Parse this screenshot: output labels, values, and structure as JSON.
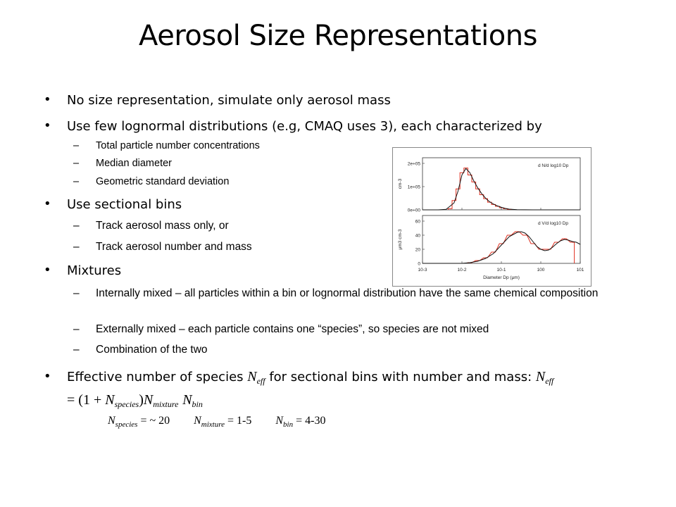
{
  "title": "Aerosol Size Representations",
  "bullets": {
    "b1": "No size representation, simulate only aerosol mass",
    "b2": "Use few lognormal distributions (e.g, CMAQ uses 3), each characterized by",
    "b2_sub1": "Total particle number concentrations",
    "b2_sub2": "Median diameter",
    "b2_sub3": "Geometric standard deviation",
    "b3": "Use sectional bins",
    "b3_sub1": "Track aerosol mass only, or",
    "b3_sub2": "Track aerosol number and mass",
    "b4": "Mixtures",
    "b4_sub1": "Internally mixed – all particles within a bin or lognormal distribution have the same chemical composition",
    "b4_sub2": "Externally mixed – each particle contains one “species”, so species are not mixed",
    "b4_sub3": "Combination of the two",
    "b5_text1": "Effective number of species ",
    "b5_text2": " for sectional bins with number and mass: ",
    "b5_text3": "= (1 + ",
    "N": "N",
    "sub_eff": "eff",
    "sub_species": "species",
    "sub_mixture": "mixture",
    "sub_bin": "bin",
    "close_paren": ")",
    "formula_species_val": " = ~ 20",
    "formula_mixture_val": " = 1-5",
    "formula_bin_val": " = 4-30"
  },
  "chart_data": [
    {
      "type": "line",
      "title": "d N/d log10 Dp",
      "ylabel": "cm-3",
      "yticks": [
        "0e+00",
        "1e+05",
        "2e+05"
      ],
      "ylim": [
        0,
        200000
      ],
      "x_log10": [
        -3,
        -2.6,
        -2.4,
        -2.2,
        -2.1,
        -2.0,
        -1.9,
        -1.8,
        -1.7,
        -1.6,
        -1.5,
        -1.4,
        -1.3,
        -1.2,
        -1.1,
        -1.0,
        -0.9,
        -0.8,
        -0.6,
        -0.2,
        0,
        1
      ],
      "values": [
        0,
        0,
        2000,
        30000,
        80000,
        150000,
        178000,
        160000,
        125000,
        95000,
        70000,
        50000,
        35000,
        25000,
        17000,
        11000,
        6000,
        3000,
        800,
        0,
        0,
        0
      ],
      "bins_log10": [
        -2.3,
        -2.2,
        -2.1,
        -2.0,
        -1.9,
        -1.8,
        -1.7,
        -1.6,
        -1.5,
        -1.4,
        -1.3,
        -1.2,
        -1.1,
        -1.0,
        -0.9,
        -0.8
      ],
      "bin_values": [
        5000,
        40000,
        90000,
        160000,
        180000,
        150000,
        120000,
        90000,
        65000,
        48000,
        33000,
        23000,
        15000,
        9000,
        5000,
        2000
      ]
    },
    {
      "type": "line",
      "title": "d V/d log10 Dp",
      "ylabel": "μm3 cm-3",
      "xlabel": "Diameter Dp (μm)",
      "yticks": [
        "0",
        "20",
        "40",
        "60"
      ],
      "ylim": [
        0,
        60
      ],
      "xticks": [
        "10-3",
        "10-2",
        "10-1",
        "100",
        "101"
      ],
      "x_log10": [
        -3,
        -2,
        -1.8,
        -1.6,
        -1.4,
        -1.2,
        -1.0,
        -0.8,
        -0.6,
        -0.5,
        -0.4,
        -0.3,
        -0.2,
        -0.1,
        0,
        0.1,
        0.2,
        0.3,
        0.4,
        0.5,
        0.6,
        0.7,
        0.8,
        0.9,
        1.0
      ],
      "values": [
        0,
        0,
        1,
        3,
        7,
        14,
        26,
        38,
        44,
        45,
        43,
        38,
        31,
        24,
        20,
        18,
        19,
        23,
        28,
        32,
        34,
        33,
        31,
        30,
        27
      ],
      "bins_log10": [
        -1.8,
        -1.6,
        -1.4,
        -1.2,
        -1.0,
        -0.8,
        -0.6,
        -0.4,
        -0.2,
        0,
        0.2,
        0.4,
        0.6,
        0.8
      ],
      "bin_values": [
        1,
        4,
        8,
        16,
        28,
        40,
        45,
        40,
        28,
        20,
        20,
        30,
        35,
        30
      ]
    }
  ]
}
